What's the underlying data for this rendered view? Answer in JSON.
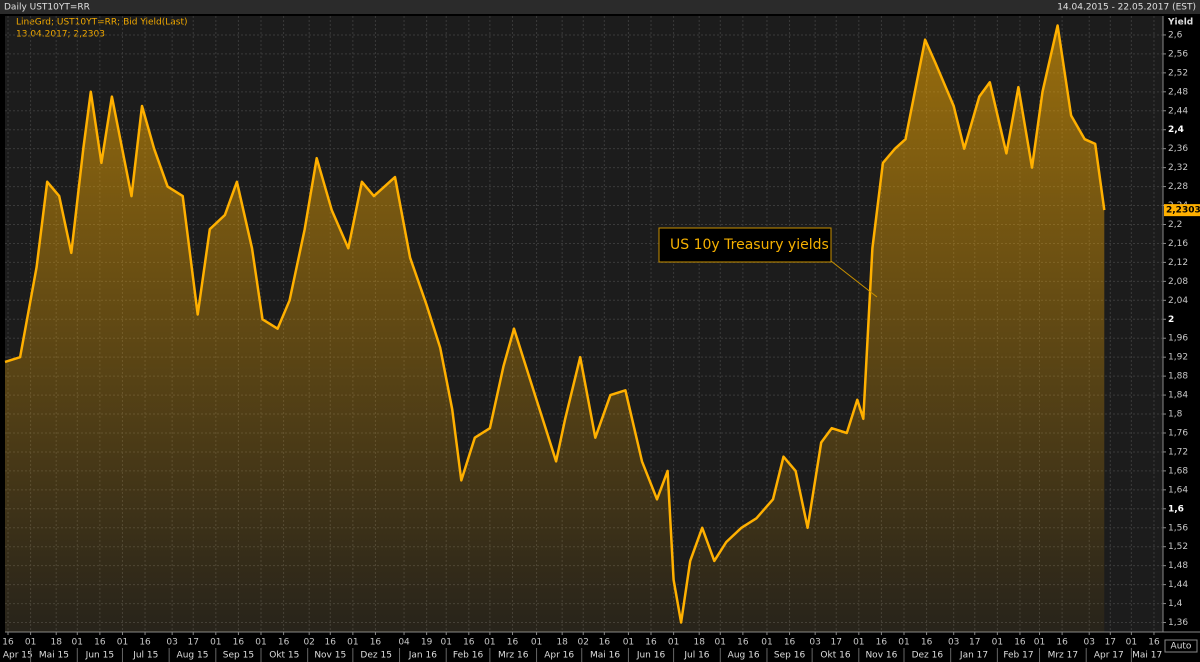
{
  "chart_data": {
    "type": "area",
    "title": "Daily UST10YT=RR",
    "subtitle": "14.04.2015 - 22.05.2017 (EST)",
    "legend_lines": [
      "LineGrd; UST10YT=RR; Bid Yield(Last)",
      "13.04.2017; 2,2303"
    ],
    "y_label": "Yield",
    "scale_button": "Auto",
    "annotation": "US 10y Treasury yields",
    "color": "#ffb000",
    "grid": true,
    "x": [
      "2015-04-14",
      "2015-04-24",
      "2015-05-05",
      "2015-05-12",
      "2015-05-20",
      "2015-05-28",
      "2015-06-05",
      "2015-06-10",
      "2015-06-17",
      "2015-06-24",
      "2015-07-07",
      "2015-07-14",
      "2015-07-22",
      "2015-07-31",
      "2015-08-10",
      "2015-08-20",
      "2015-08-28",
      "2015-09-07",
      "2015-09-15",
      "2015-09-25",
      "2015-10-02",
      "2015-10-12",
      "2015-10-20",
      "2015-10-30",
      "2015-11-07",
      "2015-11-17",
      "2015-11-28",
      "2015-12-07",
      "2015-12-15",
      "2015-12-29",
      "2016-01-08",
      "2016-01-19",
      "2016-01-28",
      "2016-02-05",
      "2016-02-11",
      "2016-02-20",
      "2016-03-01",
      "2016-03-10",
      "2016-03-17",
      "2016-03-28",
      "2016-04-07",
      "2016-04-14",
      "2016-04-20",
      "2016-04-30",
      "2016-05-10",
      "2016-05-20",
      "2016-05-30",
      "2016-06-10",
      "2016-06-20",
      "2016-06-27",
      "2016-07-01",
      "2016-07-06",
      "2016-07-12",
      "2016-07-20",
      "2016-07-28",
      "2016-08-05",
      "2016-08-15",
      "2016-08-25",
      "2016-09-05",
      "2016-09-12",
      "2016-09-20",
      "2016-09-28",
      "2016-10-07",
      "2016-10-14",
      "2016-10-24",
      "2016-10-31",
      "2016-11-04",
      "2016-11-10",
      "2016-11-17",
      "2016-11-25",
      "2016-12-02",
      "2016-12-15",
      "2016-12-22",
      "2017-01-03",
      "2017-01-10",
      "2017-01-20",
      "2017-01-27",
      "2017-02-07",
      "2017-02-15",
      "2017-02-24",
      "2017-03-03",
      "2017-03-13",
      "2017-03-22",
      "2017-03-31",
      "2017-04-07",
      "2017-04-13"
    ],
    "values": [
      1.91,
      1.92,
      2.11,
      2.29,
      2.26,
      2.14,
      2.36,
      2.48,
      2.33,
      2.47,
      2.26,
      2.45,
      2.36,
      2.28,
      2.26,
      2.01,
      2.19,
      2.22,
      2.29,
      2.15,
      2.0,
      1.98,
      2.04,
      2.19,
      2.34,
      2.23,
      2.15,
      2.29,
      2.26,
      2.3,
      2.13,
      2.03,
      1.94,
      1.81,
      1.66,
      1.75,
      1.77,
      1.9,
      1.98,
      1.87,
      1.77,
      1.7,
      1.79,
      1.92,
      1.75,
      1.84,
      1.85,
      1.7,
      1.62,
      1.68,
      1.45,
      1.36,
      1.49,
      1.56,
      1.49,
      1.53,
      1.56,
      1.58,
      1.62,
      1.71,
      1.68,
      1.56,
      1.74,
      1.77,
      1.76,
      1.83,
      1.79,
      2.15,
      2.33,
      2.36,
      2.38,
      2.59,
      2.54,
      2.45,
      2.36,
      2.47,
      2.5,
      2.35,
      2.49,
      2.32,
      2.48,
      2.62,
      2.43,
      2.38,
      2.37,
      2.2303
    ],
    "last_tick": {
      "value": 2.2303,
      "label": "2,2303"
    },
    "xlim": [
      "2015-04-14",
      "2017-05-22"
    ],
    "ylim": [
      1.34,
      2.64
    ],
    "yticks": [
      {
        "value": 1.36,
        "label": "1,36"
      },
      {
        "value": 1.4,
        "label": "1,4"
      },
      {
        "value": 1.44,
        "label": "1,44"
      },
      {
        "value": 1.48,
        "label": "1,48"
      },
      {
        "value": 1.52,
        "label": "1,52"
      },
      {
        "value": 1.56,
        "label": "1,56"
      },
      {
        "value": 1.6,
        "label": "1,6"
      },
      {
        "value": 1.64,
        "label": "1,64"
      },
      {
        "value": 1.68,
        "label": "1,68"
      },
      {
        "value": 1.72,
        "label": "1,72"
      },
      {
        "value": 1.76,
        "label": "1,76"
      },
      {
        "value": 1.8,
        "label": "1,8"
      },
      {
        "value": 1.84,
        "label": "1,84"
      },
      {
        "value": 1.88,
        "label": "1,88"
      },
      {
        "value": 1.92,
        "label": "1,92"
      },
      {
        "value": 1.96,
        "label": "1,96"
      },
      {
        "value": 2,
        "label": "2"
      },
      {
        "value": 2.04,
        "label": "2,04"
      },
      {
        "value": 2.08,
        "label": "2,08"
      },
      {
        "value": 2.12,
        "label": "2,12"
      },
      {
        "value": 2.16,
        "label": "2,16"
      },
      {
        "value": 2.2,
        "label": "2,2"
      },
      {
        "value": 2.24,
        "label": "2,24"
      },
      {
        "value": 2.28,
        "label": "2,28"
      },
      {
        "value": 2.32,
        "label": "2,32"
      },
      {
        "value": 2.36,
        "label": "2,36"
      },
      {
        "value": 2.4,
        "label": "2,4"
      },
      {
        "value": 2.44,
        "label": "2,44"
      },
      {
        "value": 2.48,
        "label": "2,48"
      },
      {
        "value": 2.52,
        "label": "2,52"
      },
      {
        "value": 2.56,
        "label": "2,56"
      },
      {
        "value": 2.6,
        "label": "2,6"
      }
    ],
    "bold_yticks": [
      1.6,
      2,
      2.4
    ],
    "xticks": [
      {
        "value": "2015-04-16",
        "label": "16"
      },
      {
        "value": "2015-05-01",
        "label": "01"
      },
      {
        "value": "2015-05-18",
        "label": "18"
      },
      {
        "value": "2015-06-01",
        "label": "01"
      },
      {
        "value": "2015-06-16",
        "label": "16"
      },
      {
        "value": "2015-07-01",
        "label": "01"
      },
      {
        "value": "2015-07-16",
        "label": "16"
      },
      {
        "value": "2015-08-03",
        "label": "03"
      },
      {
        "value": "2015-08-17",
        "label": "17"
      },
      {
        "value": "2015-09-01",
        "label": "01"
      },
      {
        "value": "2015-09-16",
        "label": "16"
      },
      {
        "value": "2015-10-01",
        "label": "01"
      },
      {
        "value": "2015-10-16",
        "label": "16"
      },
      {
        "value": "2015-11-02",
        "label": "02"
      },
      {
        "value": "2015-11-16",
        "label": "16"
      },
      {
        "value": "2015-12-01",
        "label": "01"
      },
      {
        "value": "2015-12-16",
        "label": "16"
      },
      {
        "value": "2016-01-04",
        "label": "04"
      },
      {
        "value": "2016-01-19",
        "label": "19"
      },
      {
        "value": "2016-02-01",
        "label": "01"
      },
      {
        "value": "2016-02-16",
        "label": "16"
      },
      {
        "value": "2016-03-01",
        "label": "01"
      },
      {
        "value": "2016-03-16",
        "label": "16"
      },
      {
        "value": "2016-04-01",
        "label": "01"
      },
      {
        "value": "2016-04-18",
        "label": "18"
      },
      {
        "value": "2016-05-02",
        "label": "02"
      },
      {
        "value": "2016-05-16",
        "label": "16"
      },
      {
        "value": "2016-06-01",
        "label": "01"
      },
      {
        "value": "2016-06-16",
        "label": "16"
      },
      {
        "value": "2016-07-01",
        "label": "01"
      },
      {
        "value": "2016-07-18",
        "label": "18"
      },
      {
        "value": "2016-08-01",
        "label": "01"
      },
      {
        "value": "2016-08-16",
        "label": "16"
      },
      {
        "value": "2016-09-01",
        "label": "01"
      },
      {
        "value": "2016-09-16",
        "label": "16"
      },
      {
        "value": "2016-10-03",
        "label": "03"
      },
      {
        "value": "2016-10-17",
        "label": "17"
      },
      {
        "value": "2016-11-01",
        "label": "01"
      },
      {
        "value": "2016-11-16",
        "label": "16"
      },
      {
        "value": "2016-12-01",
        "label": "01"
      },
      {
        "value": "2016-12-16",
        "label": "16"
      },
      {
        "value": "2017-01-03",
        "label": "03"
      },
      {
        "value": "2017-01-17",
        "label": "17"
      },
      {
        "value": "2017-02-01",
        "label": "01"
      },
      {
        "value": "2017-02-16",
        "label": "16"
      },
      {
        "value": "2017-03-01",
        "label": "01"
      },
      {
        "value": "2017-03-16",
        "label": "16"
      },
      {
        "value": "2017-04-03",
        "label": "03"
      },
      {
        "value": "2017-04-17",
        "label": "17"
      },
      {
        "value": "2017-05-01",
        "label": "01"
      },
      {
        "value": "2017-05-16",
        "label": "16"
      }
    ],
    "months": [
      {
        "value": "2015-04",
        "label": "Apr 15"
      },
      {
        "value": "2015-05",
        "label": "Mai 15"
      },
      {
        "value": "2015-06",
        "label": "Jun 15"
      },
      {
        "value": "2015-07",
        "label": "Jul 15"
      },
      {
        "value": "2015-08",
        "label": "Aug 15"
      },
      {
        "value": "2015-09",
        "label": "Sep 15"
      },
      {
        "value": "2015-10",
        "label": "Okt 15"
      },
      {
        "value": "2015-11",
        "label": "Nov 15"
      },
      {
        "value": "2015-12",
        "label": "Dez 15"
      },
      {
        "value": "2016-01",
        "label": "Jan 16"
      },
      {
        "value": "2016-02",
        "label": "Feb 16"
      },
      {
        "value": "2016-03",
        "label": "Mrz 16"
      },
      {
        "value": "2016-04",
        "label": "Apr 16"
      },
      {
        "value": "2016-05",
        "label": "Mai 16"
      },
      {
        "value": "2016-06",
        "label": "Jun 16"
      },
      {
        "value": "2016-07",
        "label": "Jul 16"
      },
      {
        "value": "2016-08",
        "label": "Aug 16"
      },
      {
        "value": "2016-09",
        "label": "Sep 16"
      },
      {
        "value": "2016-10",
        "label": "Okt 16"
      },
      {
        "value": "2016-11",
        "label": "Nov 16"
      },
      {
        "value": "2016-12",
        "label": "Dez 16"
      },
      {
        "value": "2017-01",
        "label": "Jan 17"
      },
      {
        "value": "2017-02",
        "label": "Feb 17"
      },
      {
        "value": "2017-03",
        "label": "Mrz 17"
      },
      {
        "value": "2017-04",
        "label": "Apr 17"
      },
      {
        "value": "2017-05",
        "label": "Mai 17"
      }
    ]
  }
}
